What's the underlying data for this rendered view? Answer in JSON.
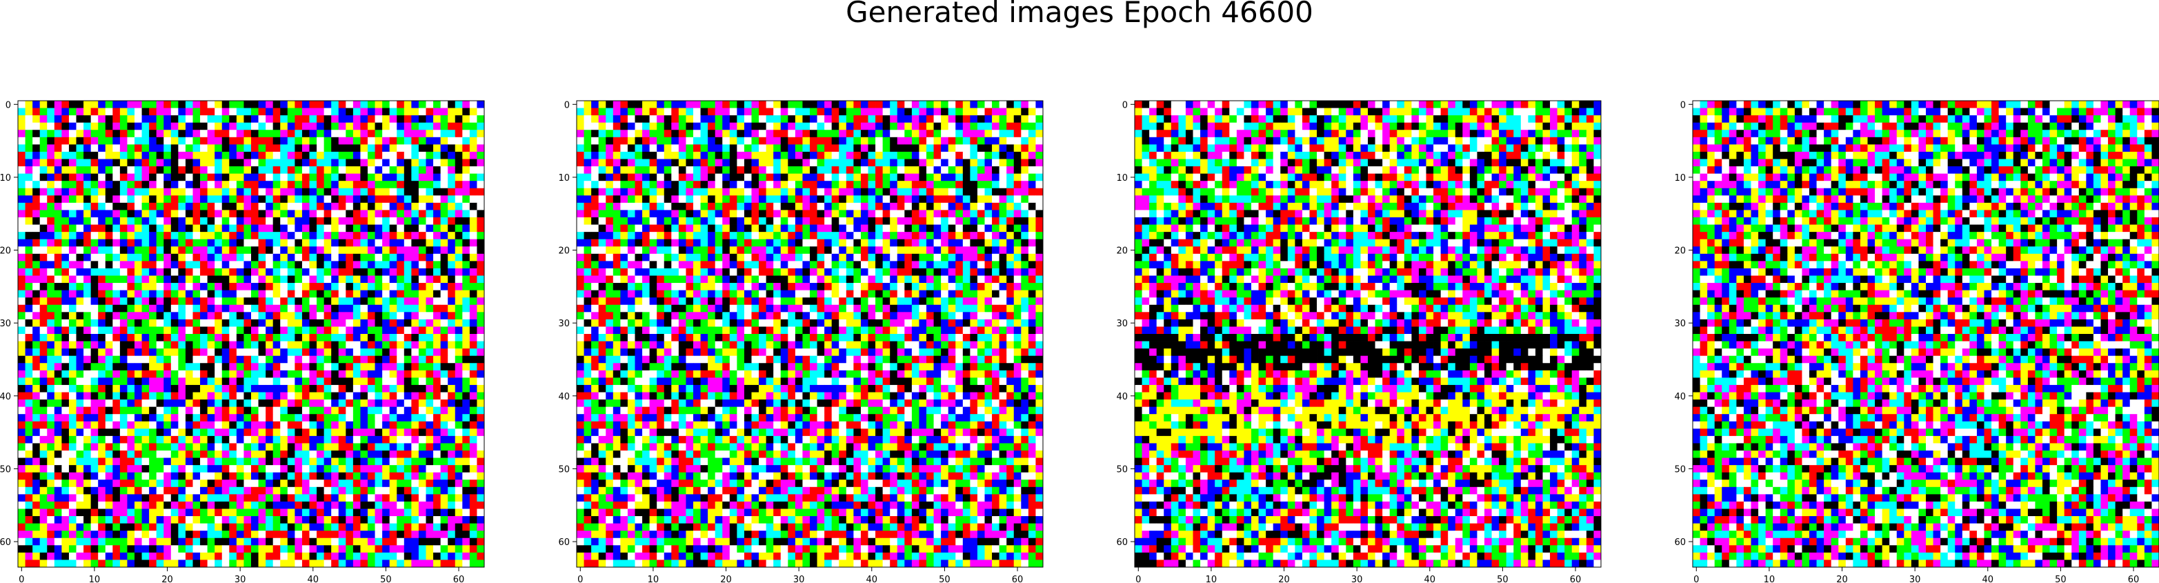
{
  "figure": {
    "title": "Generated images Epoch 46600"
  },
  "palette": [
    "#000000",
    "#ffffff",
    "#ff0000",
    "#00ff00",
    "#0000ff",
    "#00ffff",
    "#ff00ff",
    "#ffff00"
  ],
  "chart_data": [
    {
      "type": "heatmap",
      "title": "",
      "xlabel": "",
      "ylabel": "",
      "xlim": [
        -0.5,
        63.5
      ],
      "ylim": [
        63.5,
        -0.5
      ],
      "x_ticks": [
        "0",
        "10",
        "20",
        "30",
        "40",
        "50",
        "60"
      ],
      "y_ticks": [
        "0",
        "10",
        "20",
        "30",
        "40",
        "50",
        "60"
      ],
      "grid": false
    },
    {
      "type": "heatmap",
      "title": "",
      "xlabel": "",
      "ylabel": "",
      "xlim": [
        -0.5,
        63.5
      ],
      "ylim": [
        63.5,
        -0.5
      ],
      "x_ticks": [
        "0",
        "10",
        "20",
        "30",
        "40",
        "50",
        "60"
      ],
      "y_ticks": [
        "0",
        "10",
        "20",
        "30",
        "40",
        "50",
        "60"
      ],
      "grid": false
    },
    {
      "type": "heatmap",
      "title": "",
      "xlabel": "",
      "ylabel": "",
      "xlim": [
        -0.5,
        63.5
      ],
      "ylim": [
        63.5,
        -0.5
      ],
      "x_ticks": [
        "0",
        "10",
        "20",
        "30",
        "40",
        "50",
        "60"
      ],
      "y_ticks": [
        "0",
        "10",
        "20",
        "30",
        "40",
        "50",
        "60"
      ],
      "grid": false
    },
    {
      "type": "heatmap",
      "title": "",
      "xlabel": "",
      "ylabel": "",
      "xlim": [
        -0.5,
        63.5
      ],
      "ylim": [
        63.5,
        -0.5
      ],
      "x_ticks": [
        "0",
        "10",
        "20",
        "30",
        "40",
        "50",
        "60"
      ],
      "y_ticks": [
        "0",
        "10",
        "20",
        "30",
        "40",
        "50",
        "60"
      ],
      "grid": false
    }
  ]
}
